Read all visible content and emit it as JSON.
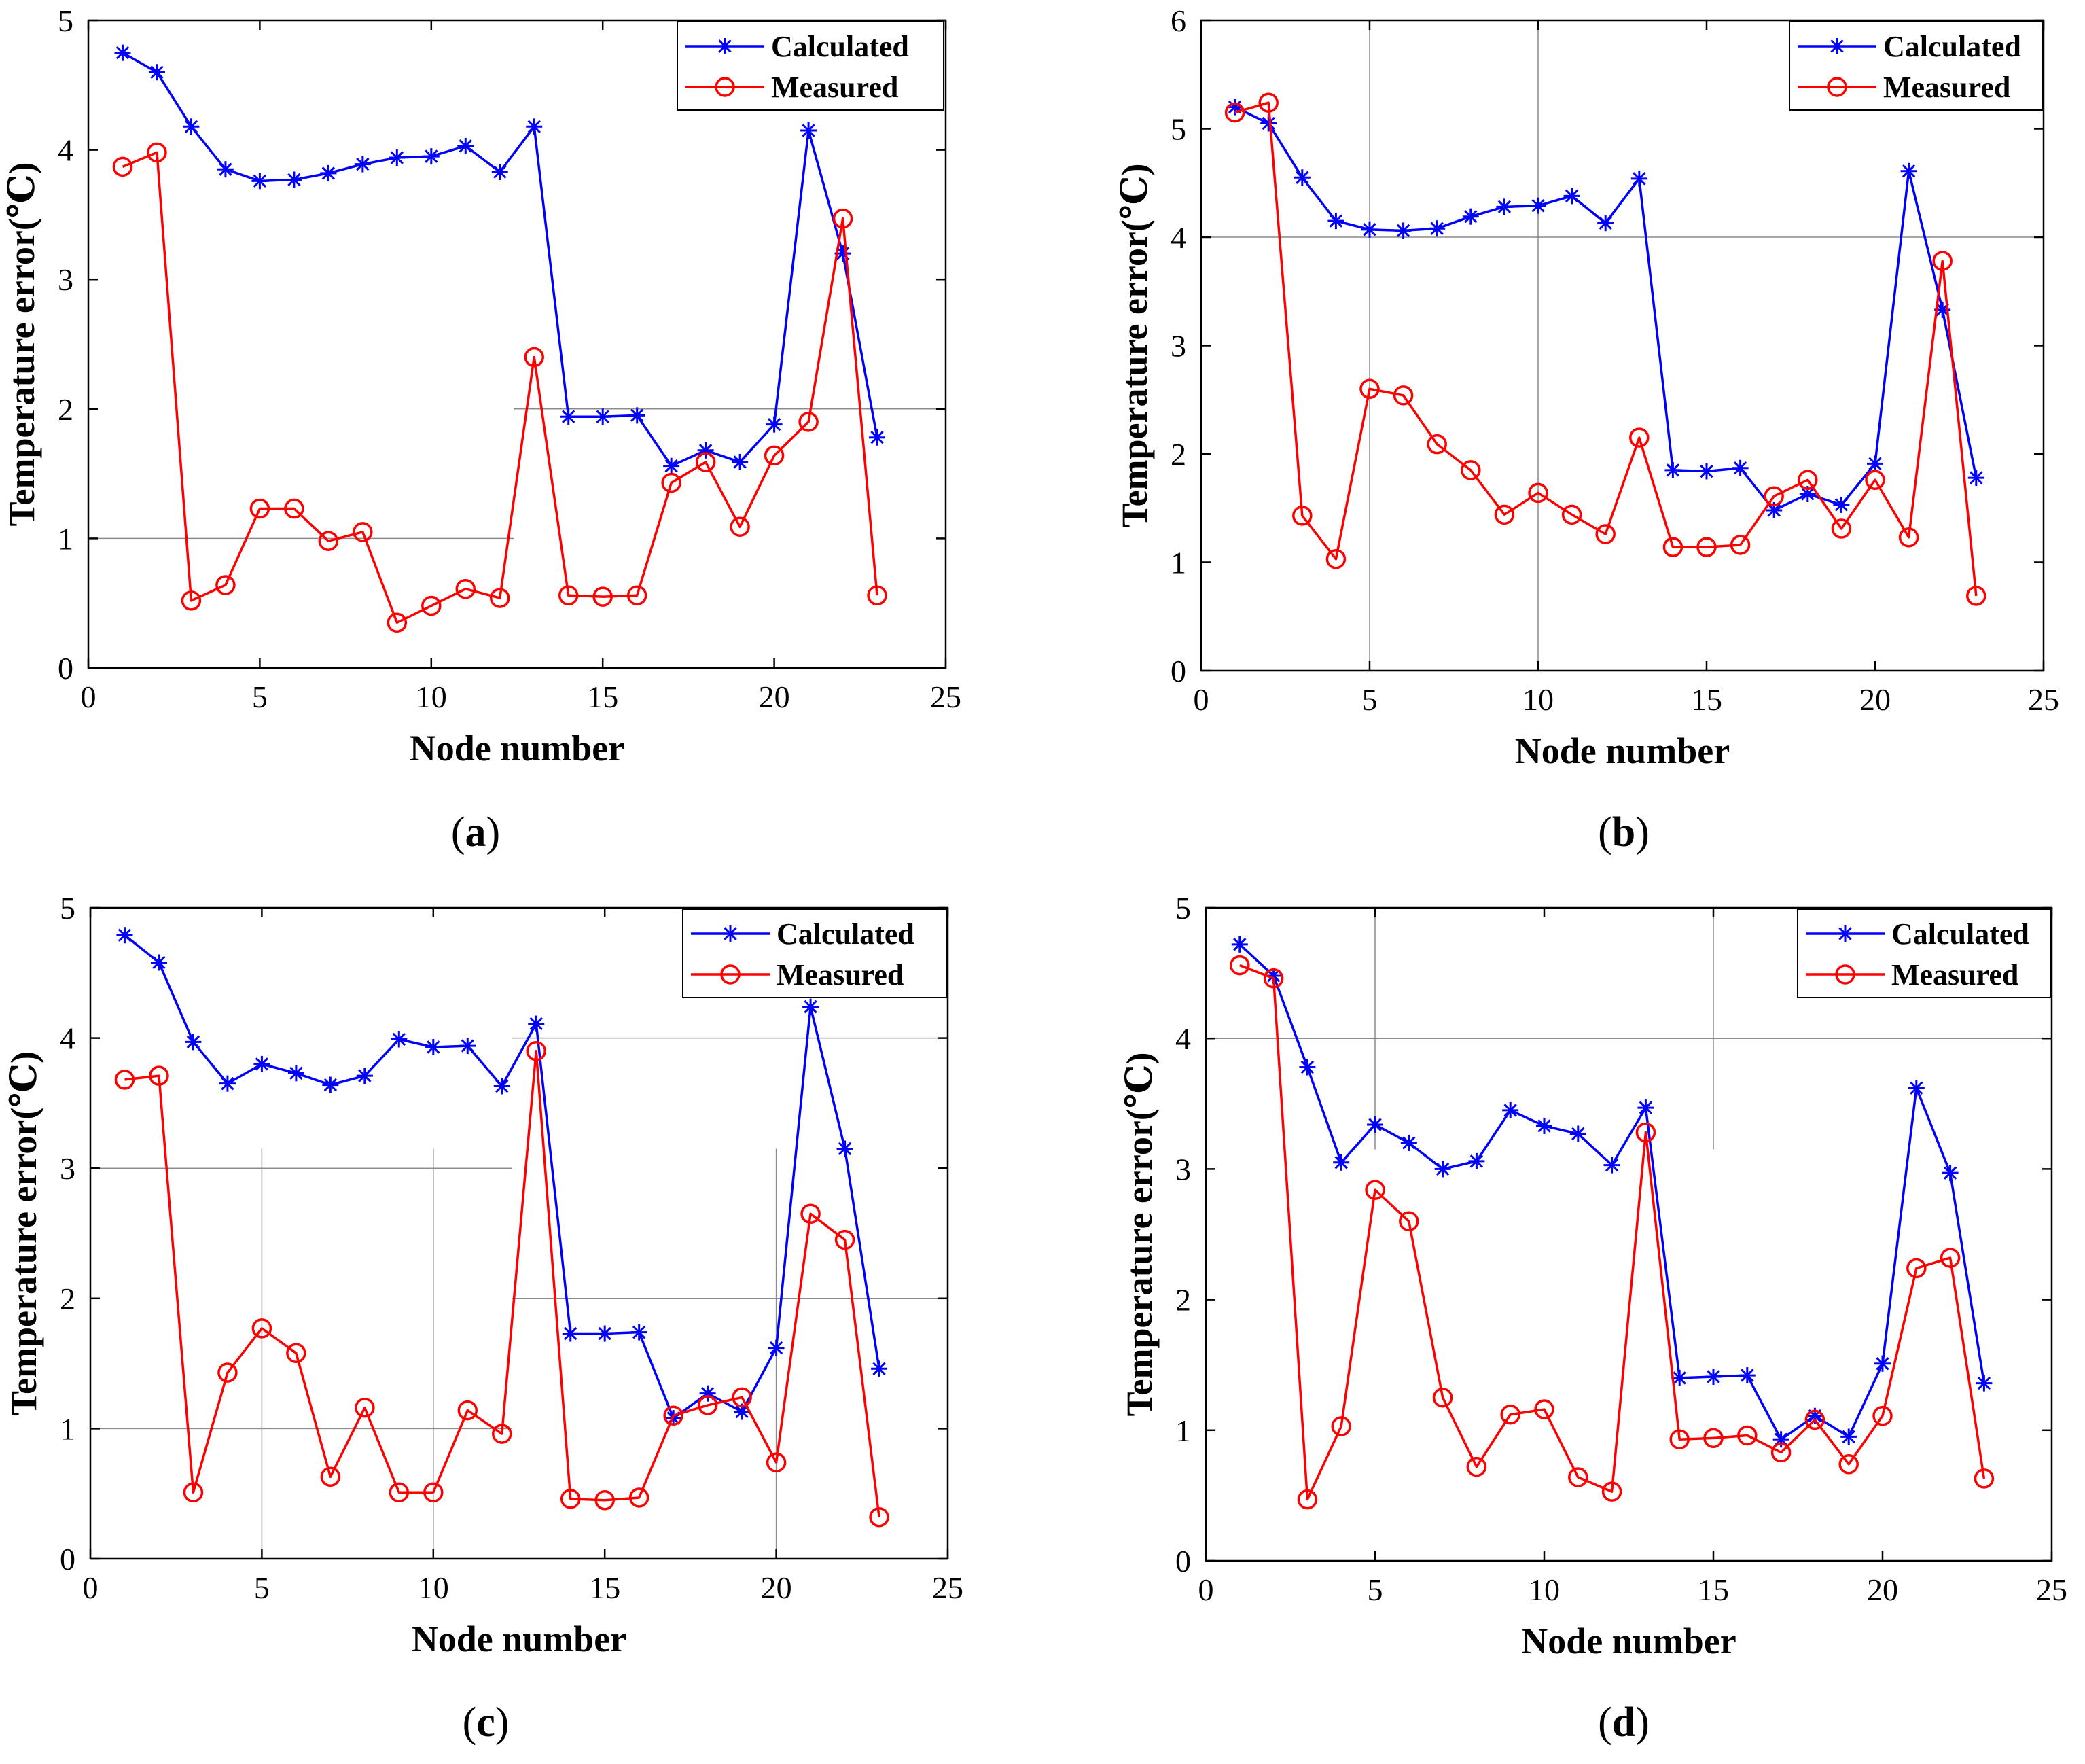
{
  "figure": {
    "panels": [
      {
        "id": "a",
        "caption_letter": "a",
        "ylabel": "Temperature error(℃)",
        "xlabel": "Node number"
      },
      {
        "id": "b",
        "caption_letter": "b",
        "ylabel": "Temperature error(℃)",
        "xlabel": "Node number"
      },
      {
        "id": "c",
        "caption_letter": "c",
        "ylabel": "Temperature error(℃)",
        "xlabel": "Node number"
      },
      {
        "id": "d",
        "caption_letter": "d",
        "ylabel": "Temperature error(℃)",
        "xlabel": "Node number"
      }
    ]
  },
  "chart_data": [
    {
      "panel": "a",
      "type": "line",
      "xlabel": "Node number",
      "ylabel": "Temperature error(℃)",
      "xlim": [
        0,
        25
      ],
      "ylim": [
        0,
        5
      ],
      "xticks": [
        0,
        5,
        10,
        15,
        20,
        25
      ],
      "yticks": [
        0,
        1,
        2,
        3,
        4,
        5
      ],
      "legend_position": "top-right",
      "x": [
        1,
        2,
        3,
        4,
        5,
        6,
        7,
        8,
        9,
        10,
        11,
        12,
        13,
        14,
        15,
        16,
        17,
        18,
        19,
        20,
        21,
        22,
        23
      ],
      "series": [
        {
          "name": "Calculated",
          "color": "#0000ff",
          "marker": "asterisk",
          "values": [
            4.75,
            4.6,
            4.18,
            3.85,
            3.76,
            3.77,
            3.82,
            3.89,
            3.94,
            3.95,
            4.03,
            3.83,
            4.18,
            1.94,
            1.94,
            1.95,
            1.56,
            1.68,
            1.59,
            1.88,
            4.15,
            3.2,
            1.78
          ]
        },
        {
          "name": "Measured",
          "color": "#ff0000",
          "marker": "circle",
          "values": [
            3.87,
            3.98,
            0.52,
            0.64,
            1.23,
            1.23,
            0.98,
            1.05,
            0.35,
            0.48,
            0.61,
            0.54,
            2.4,
            0.56,
            0.55,
            0.56,
            1.43,
            1.59,
            1.09,
            1.64,
            1.9,
            3.47,
            0.56
          ]
        }
      ]
    },
    {
      "panel": "b",
      "type": "line",
      "xlabel": "Node number",
      "ylabel": "Temperature error(℃)",
      "xlim": [
        0,
        25
      ],
      "ylim": [
        0,
        6
      ],
      "xticks": [
        0,
        5,
        10,
        15,
        20,
        25
      ],
      "yticks": [
        0,
        1,
        2,
        3,
        4,
        5,
        6
      ],
      "legend_position": "top-right",
      "x": [
        1,
        2,
        3,
        4,
        5,
        6,
        7,
        8,
        9,
        10,
        11,
        12,
        13,
        14,
        15,
        16,
        17,
        18,
        19,
        20,
        21,
        22,
        23
      ],
      "series": [
        {
          "name": "Calculated",
          "color": "#0000ff",
          "marker": "asterisk",
          "values": [
            5.2,
            5.05,
            4.55,
            4.15,
            4.07,
            4.06,
            4.08,
            4.19,
            4.28,
            4.29,
            4.38,
            4.13,
            4.54,
            1.85,
            1.84,
            1.87,
            1.48,
            1.63,
            1.53,
            1.91,
            4.61,
            3.33,
            1.78
          ]
        },
        {
          "name": "Measured",
          "color": "#ff0000",
          "marker": "circle",
          "values": [
            5.15,
            5.24,
            1.43,
            1.03,
            2.6,
            2.54,
            2.09,
            1.85,
            1.44,
            1.64,
            1.44,
            1.26,
            2.15,
            1.14,
            1.14,
            1.16,
            1.61,
            1.76,
            1.31,
            1.76,
            1.23,
            3.78,
            0.69
          ]
        }
      ]
    },
    {
      "panel": "c",
      "type": "line",
      "xlabel": "Node number",
      "ylabel": "Temperature error(℃)",
      "xlim": [
        0,
        25
      ],
      "ylim": [
        0,
        5
      ],
      "xticks": [
        0,
        5,
        10,
        15,
        20,
        25
      ],
      "yticks": [
        0,
        1,
        2,
        3,
        4,
        5
      ],
      "legend_position": "top-right",
      "x": [
        1,
        2,
        3,
        4,
        5,
        6,
        7,
        8,
        9,
        10,
        11,
        12,
        13,
        14,
        15,
        16,
        17,
        18,
        19,
        20,
        21,
        22,
        23
      ],
      "series": [
        {
          "name": "Calculated",
          "color": "#0000ff",
          "marker": "asterisk",
          "values": [
            4.79,
            4.58,
            3.97,
            3.65,
            3.8,
            3.73,
            3.64,
            3.71,
            3.99,
            3.93,
            3.94,
            3.63,
            4.11,
            1.73,
            1.73,
            1.74,
            1.08,
            1.27,
            1.13,
            1.62,
            4.24,
            3.15,
            1.46
          ]
        },
        {
          "name": "Measured",
          "color": "#ff0000",
          "marker": "circle",
          "values": [
            3.68,
            3.71,
            0.51,
            1.43,
            1.77,
            1.58,
            0.63,
            1.16,
            0.51,
            0.51,
            1.14,
            0.96,
            3.9,
            0.46,
            0.45,
            0.47,
            1.1,
            1.18,
            1.24,
            0.74,
            2.65,
            2.45,
            0.32
          ]
        }
      ]
    },
    {
      "panel": "d",
      "type": "line",
      "xlabel": "Node number",
      "ylabel": "Temperature error(℃)",
      "xlim": [
        0,
        25
      ],
      "ylim": [
        0,
        5
      ],
      "xticks": [
        0,
        5,
        10,
        15,
        20,
        25
      ],
      "yticks": [
        0,
        1,
        2,
        3,
        4,
        5
      ],
      "legend_position": "top-right",
      "x": [
        1,
        2,
        3,
        4,
        5,
        6,
        7,
        8,
        9,
        10,
        11,
        12,
        13,
        14,
        15,
        16,
        17,
        18,
        19,
        20,
        21,
        22,
        23
      ],
      "series": [
        {
          "name": "Calculated",
          "color": "#0000ff",
          "marker": "asterisk",
          "values": [
            4.72,
            4.48,
            3.78,
            3.05,
            3.34,
            3.2,
            3.0,
            3.06,
            3.45,
            3.33,
            3.27,
            3.03,
            3.47,
            1.4,
            1.41,
            1.42,
            0.93,
            1.11,
            0.95,
            1.51,
            3.62,
            2.97,
            1.36
          ]
        },
        {
          "name": "Measured",
          "color": "#ff0000",
          "marker": "circle",
          "values": [
            4.56,
            4.46,
            0.47,
            1.03,
            2.84,
            2.6,
            1.25,
            0.72,
            1.12,
            1.16,
            0.64,
            0.53,
            3.28,
            0.93,
            0.94,
            0.96,
            0.83,
            1.08,
            0.74,
            1.11,
            2.24,
            2.32,
            0.63
          ]
        }
      ]
    }
  ]
}
